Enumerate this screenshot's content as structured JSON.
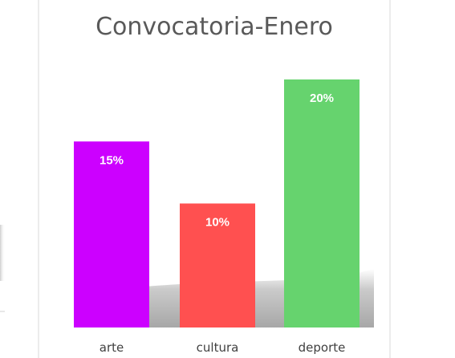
{
  "chart_data": {
    "type": "bar",
    "title": "Convocatoria-Enero",
    "categories": [
      "arte",
      "cultura",
      "deporte"
    ],
    "values": [
      15,
      10,
      20
    ],
    "data_labels": [
      "15%",
      "10%",
      "20%"
    ],
    "colors": [
      "#cc00ff",
      "#ff5050",
      "#66d36e"
    ],
    "ylim": [
      0,
      25
    ],
    "grid": false,
    "legend": "none"
  }
}
